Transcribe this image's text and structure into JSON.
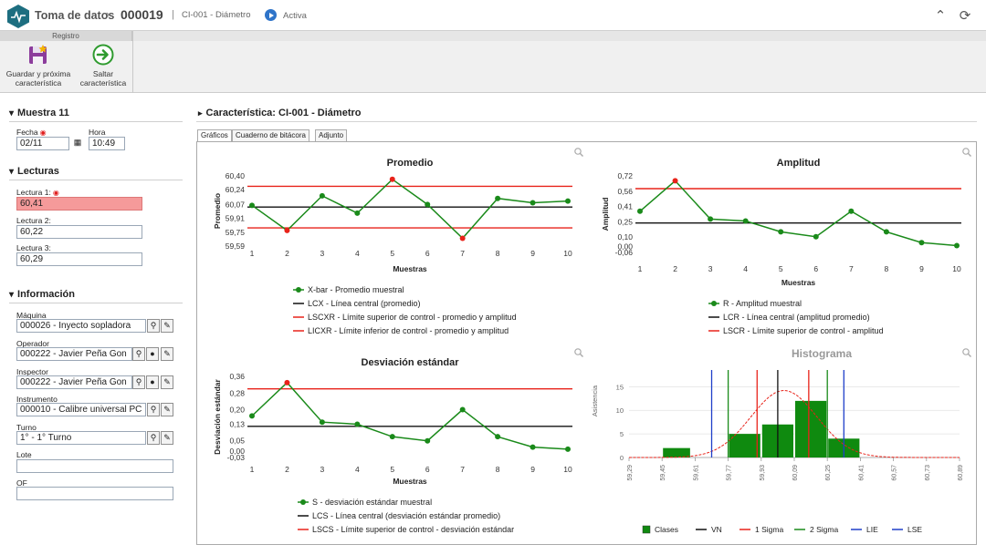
{
  "header": {
    "title": "Toma de datos",
    "sep": "›",
    "number": "000019",
    "sep2": "|",
    "subtitle": "CI-001 - Diámetro",
    "status": "Activa"
  },
  "ribbon": {
    "group": "Registro",
    "save_label_1": "Guardar y próxima",
    "save_label_2": "característica",
    "skip_label_1": "Saltar",
    "skip_label_2": "característica"
  },
  "muestra": {
    "title": "Muestra 11",
    "fecha_label": "Fecha",
    "fecha": "02/11",
    "hora_label": "Hora",
    "hora": "10:49"
  },
  "lecturas": {
    "title": "Lecturas",
    "l1_label": "Lectura 1:",
    "l1": "60,41",
    "l2_label": "Lectura 2:",
    "l2": "60,22",
    "l3_label": "Lectura 3:",
    "l3": "60,29"
  },
  "info": {
    "title": "Información",
    "maquina_label": "Máquina",
    "maquina": "000026 - Inyecto sopladora",
    "operador_label": "Operador",
    "operador": "000222 - Javier Peña Gon",
    "inspector_label": "Inspector",
    "inspector": "000222 - Javier Peña Gon",
    "instrumento_label": "Instrumento",
    "instrumento": "000010 - Calibre universal PC",
    "turno_label": "Turno",
    "turno": "1° - 1° Turno",
    "lote_label": "Lote",
    "lote": "",
    "of_label": "OF",
    "of": ""
  },
  "main": {
    "title": "Característica: CI-001 - Diámetro",
    "tabs": [
      "Gráficos",
      "Cuaderno de bitácora",
      "Adjunto"
    ]
  },
  "colors": {
    "green": "#1a8a1a",
    "red": "#e8231a",
    "black": "#111111",
    "blue": "#1f3fc9",
    "bar": "#0f8a0f"
  },
  "chart_data": [
    {
      "id": "promedio",
      "type": "line",
      "title": "Promedio",
      "xlabel": "Muestras",
      "ylabel": "Promedio",
      "x": [
        1,
        2,
        3,
        4,
        5,
        6,
        7,
        8,
        9,
        10
      ],
      "values": [
        60.06,
        59.77,
        60.17,
        59.97,
        60.36,
        60.07,
        59.68,
        60.14,
        60.09,
        60.11
      ],
      "yticks": [
        "59,59",
        "59,75",
        "59,91",
        "60,07",
        "60,24",
        "60,40"
      ],
      "ylim": [
        59.59,
        60.4
      ],
      "lines": {
        "center": 60.04,
        "upper": 60.28,
        "lower": 59.8
      },
      "out_points": [
        2,
        5,
        7
      ],
      "legend": [
        "X-bar - Promedio muestral",
        "LCX - Línea central (promedio)",
        "LSCXR - Límite superior de control - promedio y amplitud",
        "LICXR - Límite inferior de control - promedio y amplitud"
      ]
    },
    {
      "id": "amplitud",
      "type": "line",
      "title": "Amplitud",
      "xlabel": "Muestras",
      "ylabel": "Amplitud",
      "x": [
        1,
        2,
        3,
        4,
        5,
        6,
        7,
        8,
        9,
        10
      ],
      "values": [
        0.36,
        0.67,
        0.28,
        0.26,
        0.15,
        0.1,
        0.36,
        0.15,
        0.04,
        0.01
      ],
      "yticks": [
        "-0,06",
        "0,00",
        "0,10",
        "0,25",
        "0,41",
        "0,56",
        "0,72"
      ],
      "ylim": [
        -0.06,
        0.72
      ],
      "lines": {
        "center": 0.24,
        "upper": 0.59
      },
      "out_points": [
        2
      ],
      "legend": [
        "R - Amplitud muestral",
        "LCR - Línea central (amplitud promedio)",
        "LSCR - Límite superior de control - amplitud"
      ]
    },
    {
      "id": "desviacion",
      "type": "line",
      "title": "Desviación estándar",
      "xlabel": "Muestras",
      "ylabel": "Desviación estándar",
      "x": [
        1,
        2,
        3,
        4,
        5,
        6,
        7,
        8,
        9,
        10
      ],
      "values": [
        0.17,
        0.33,
        0.14,
        0.13,
        0.07,
        0.05,
        0.2,
        0.07,
        0.02,
        0.01
      ],
      "yticks": [
        "-0,03",
        "0,00",
        "0,05",
        "0,13",
        "0,20",
        "0,28",
        "0,36"
      ],
      "ylim": [
        -0.03,
        0.36
      ],
      "lines": {
        "center": 0.12,
        "upper": 0.3
      },
      "out_points": [
        2
      ],
      "legend": [
        "S - desviación estándar muestral",
        "LCS - Línea central (desviación estándar promedio)",
        "LSCS - Límite superior de control - desviación estándar"
      ]
    },
    {
      "id": "histograma",
      "type": "bar",
      "title": "Histograma",
      "ylabel": "Asistencia",
      "xticks": [
        "59,29",
        "59,45",
        "59,61",
        "59,77",
        "59,93",
        "60,09",
        "60,25",
        "60,41",
        "60,57",
        "60,73",
        "60,89"
      ],
      "yticks": [
        "0",
        "5",
        "10",
        "15"
      ],
      "ylim": [
        0,
        17
      ],
      "xlim": [
        59.29,
        60.89
      ],
      "bins": [
        {
          "from": 59.45,
          "to": 59.59,
          "count": 2
        },
        {
          "from": 59.77,
          "to": 59.93,
          "count": 5
        },
        {
          "from": 59.93,
          "to": 60.09,
          "count": 7
        },
        {
          "from": 60.09,
          "to": 60.25,
          "count": 12
        },
        {
          "from": 60.25,
          "to": 60.41,
          "count": 4
        }
      ],
      "vlines": {
        "vn": 60.01,
        "sigma1": [
          59.91,
          60.16
        ],
        "sigma2": [
          59.77,
          60.25
        ],
        "lie": 59.69,
        "lse": 60.33
      },
      "curve_mean": 60.04,
      "curve_sd": 0.16,
      "curve_peak": 14.2,
      "legend": [
        "Clases",
        "VN",
        "1 Sigma",
        "2 Sigma",
        "LIE",
        "LSE"
      ]
    }
  ]
}
